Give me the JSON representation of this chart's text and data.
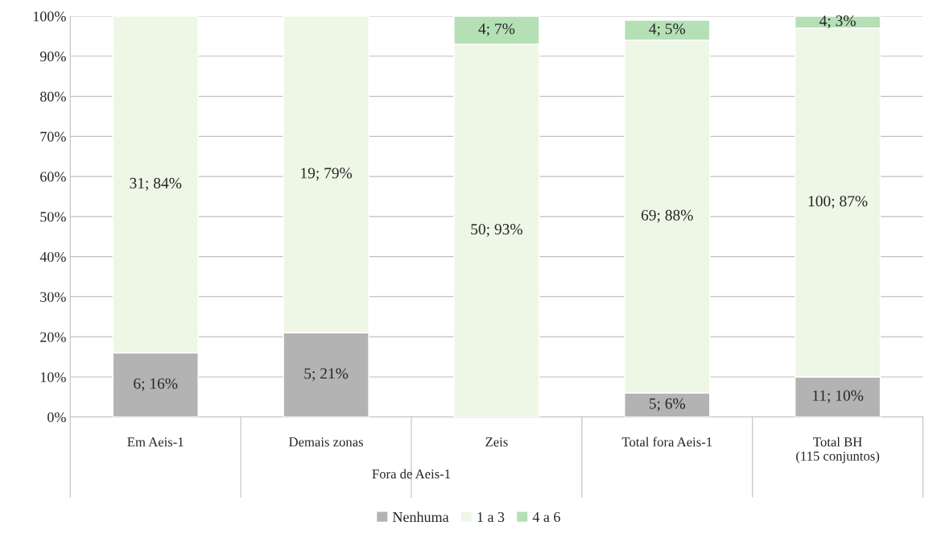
{
  "chart_data": {
    "type": "bar",
    "stacked": true,
    "categories": [
      "Em Aeis-1",
      "Demais zonas",
      "Zeis",
      "Total fora Aeis-1",
      "Total BH\n(115 conjuntos)"
    ],
    "series": [
      {
        "name": "Nenhuma",
        "color": "#b3b3b3",
        "values": [
          16,
          21,
          null,
          6,
          10
        ],
        "value_labels": [
          "6; 16%",
          "5; 21%",
          null,
          "5; 6%",
          "11; 10%"
        ]
      },
      {
        "name": "1 a 3",
        "color": "#eef7e6",
        "values": [
          84,
          79,
          93,
          88,
          87
        ],
        "value_labels": [
          "31; 84%",
          "19; 79%",
          "50; 93%",
          "69; 88%",
          "100; 87%"
        ]
      },
      {
        "name": "4 a 6",
        "color": "#b5e0b5",
        "values": [
          null,
          null,
          7,
          5,
          3
        ],
        "value_labels": [
          null,
          null,
          "4; 7%",
          "4; 5%",
          "4; 3%"
        ]
      }
    ],
    "annotations": [
      "Fora de Aeis-1"
    ],
    "ylim": [
      0,
      100
    ],
    "yticks": [
      {
        "value": 0,
        "label": "0%"
      },
      {
        "value": 10,
        "label": "10%"
      },
      {
        "value": 20,
        "label": "20%"
      },
      {
        "value": 30,
        "label": "30%"
      },
      {
        "value": 40,
        "label": "40%"
      },
      {
        "value": 50,
        "label": "50%"
      },
      {
        "value": 60,
        "label": "60%"
      },
      {
        "value": 70,
        "label": "70%"
      },
      {
        "value": 80,
        "label": "80%"
      },
      {
        "value": 90,
        "label": "90%"
      },
      {
        "value": 100,
        "label": "100%"
      }
    ],
    "grid": "y",
    "legend": "bottom"
  }
}
